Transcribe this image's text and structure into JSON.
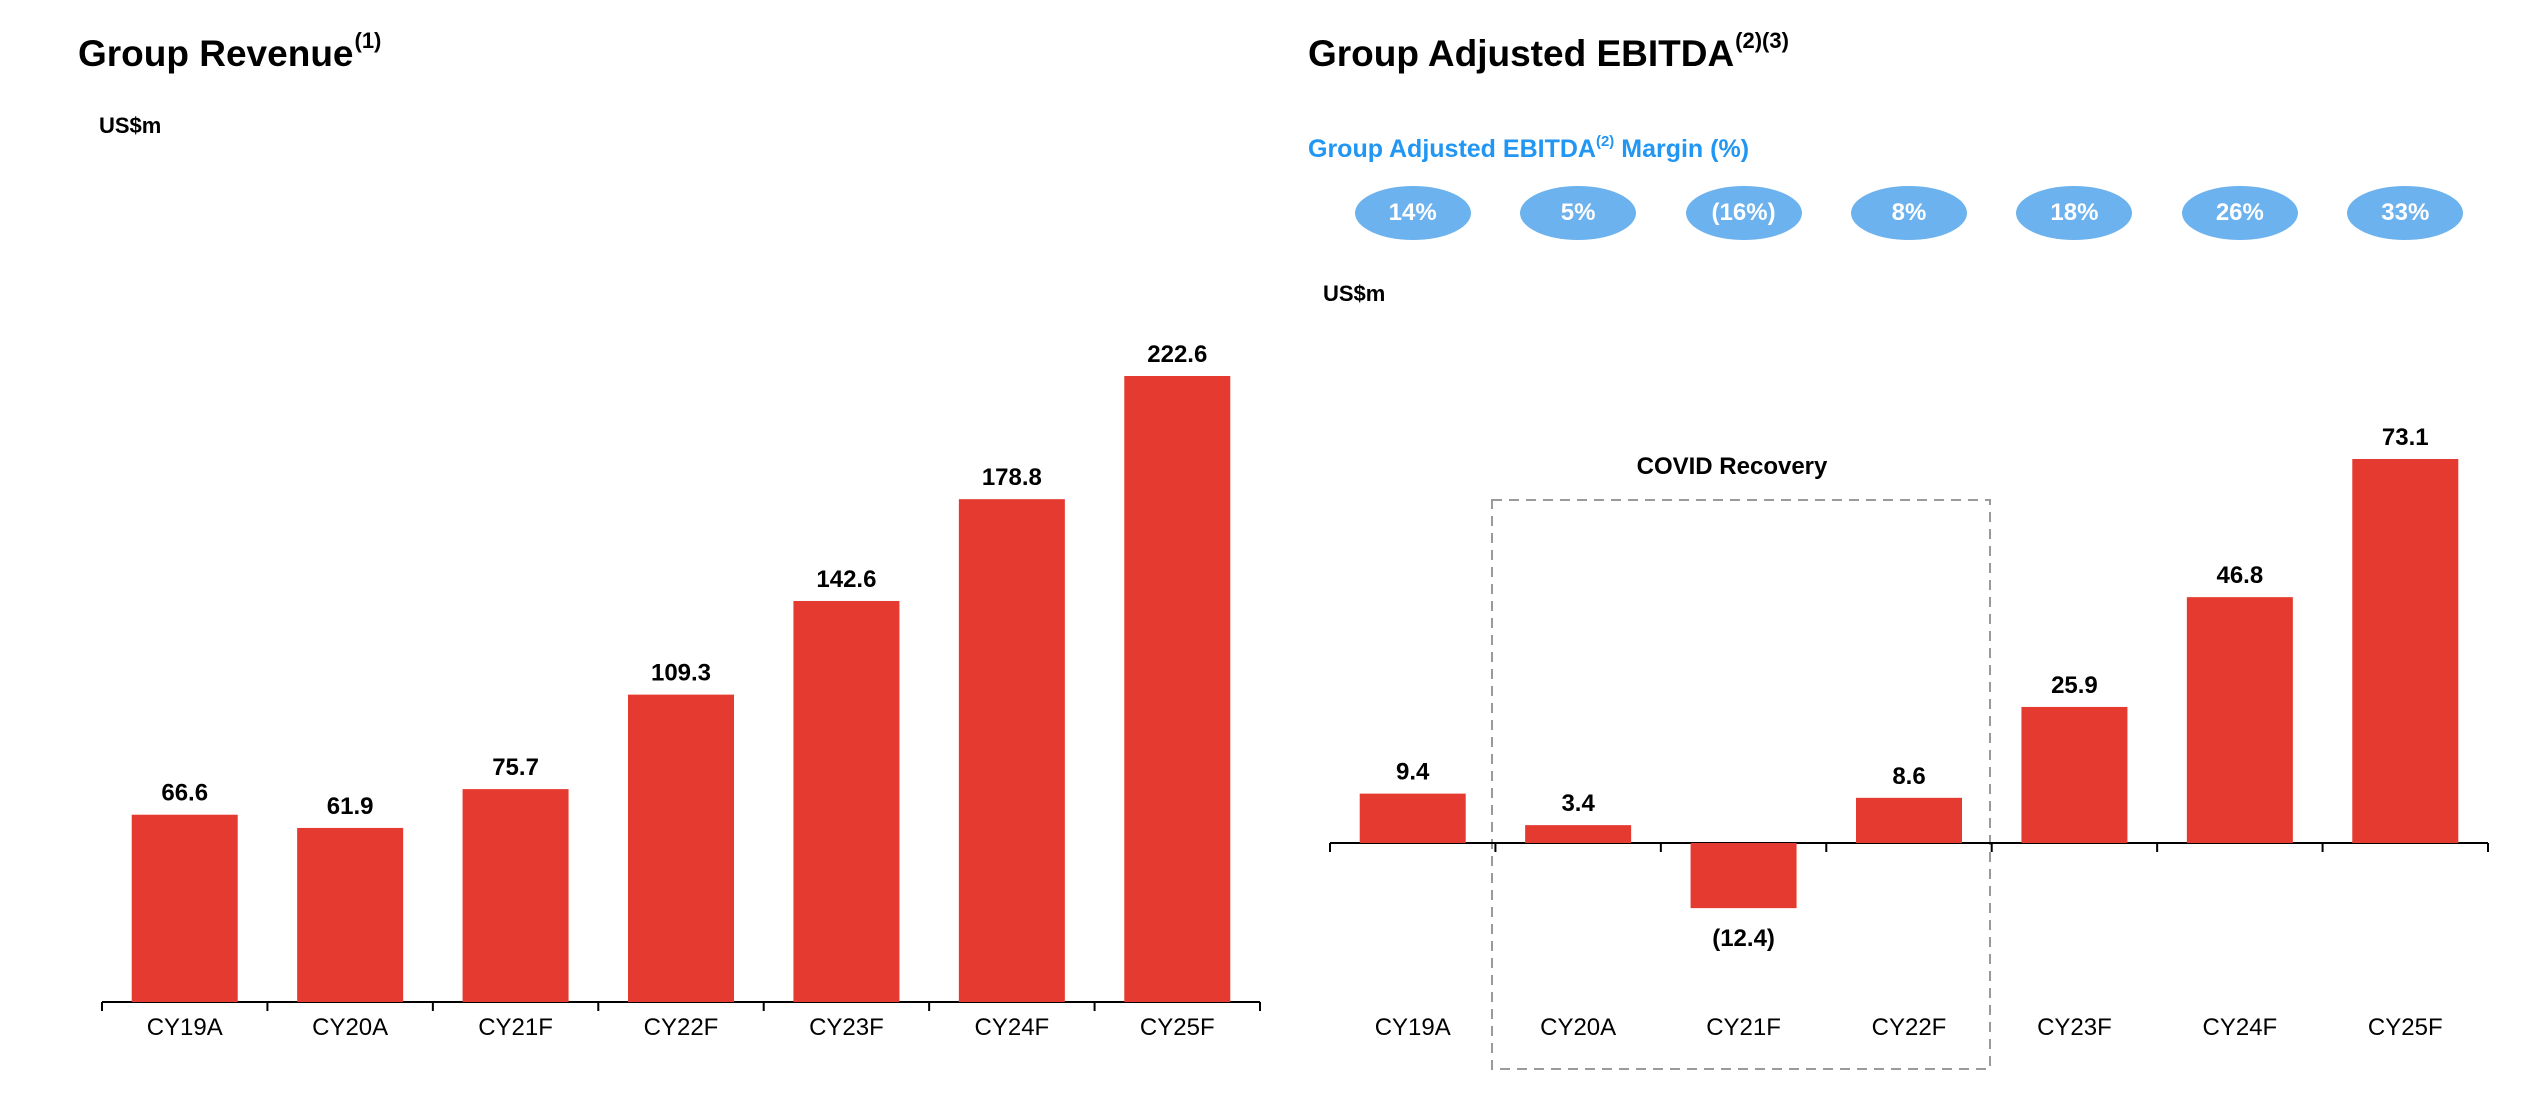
{
  "colors": {
    "bar": "#e53a2f",
    "accent": "#2196f3",
    "pill_fill": "#6cb2ee",
    "axis": "#000000",
    "covid_box": "#9a9a9a"
  },
  "left": {
    "title": "Group Revenue",
    "title_sup": "(1)",
    "unit": "US$m"
  },
  "right": {
    "title": "Group Adjusted EBITDA",
    "title_sup": "(2)(3)",
    "margin_title_prefix": "Group Adjusted EBITDA",
    "margin_title_sup": "(2)",
    "margin_title_suffix": " Margin (%)",
    "margins": [
      "14%",
      "5%",
      "(16%)",
      "8%",
      "18%",
      "26%",
      "33%"
    ],
    "unit": "US$m",
    "covid_label": "COVID Recovery"
  },
  "chart_data": [
    {
      "type": "bar",
      "title": "Group Revenue(1)",
      "ylabel": "US$m",
      "categories": [
        "CY19A",
        "CY20A",
        "CY21F",
        "CY22F",
        "CY23F",
        "CY24F",
        "CY25F"
      ],
      "values": [
        66.6,
        61.9,
        75.7,
        109.3,
        142.6,
        178.8,
        222.6
      ],
      "value_labels": [
        "66.6",
        "61.9",
        "75.7",
        "109.3",
        "142.6",
        "178.8",
        "222.6"
      ],
      "grid": false,
      "legend": "none"
    },
    {
      "type": "bar",
      "title": "Group Adjusted EBITDA(2)(3)",
      "ylabel": "US$m",
      "categories": [
        "CY19A",
        "CY20A",
        "CY21F",
        "CY22F",
        "CY23F",
        "CY24F",
        "CY25F"
      ],
      "values": [
        9.4,
        3.4,
        -12.4,
        8.6,
        25.9,
        46.8,
        73.1
      ],
      "value_labels": [
        "9.4",
        "3.4",
        "(12.4)",
        "8.6",
        "25.9",
        "46.8",
        "73.1"
      ],
      "annotation": "COVID Recovery",
      "annotated_categories": [
        "CY20A",
        "CY21F",
        "CY22F"
      ],
      "grid": false,
      "legend": "none"
    }
  ]
}
